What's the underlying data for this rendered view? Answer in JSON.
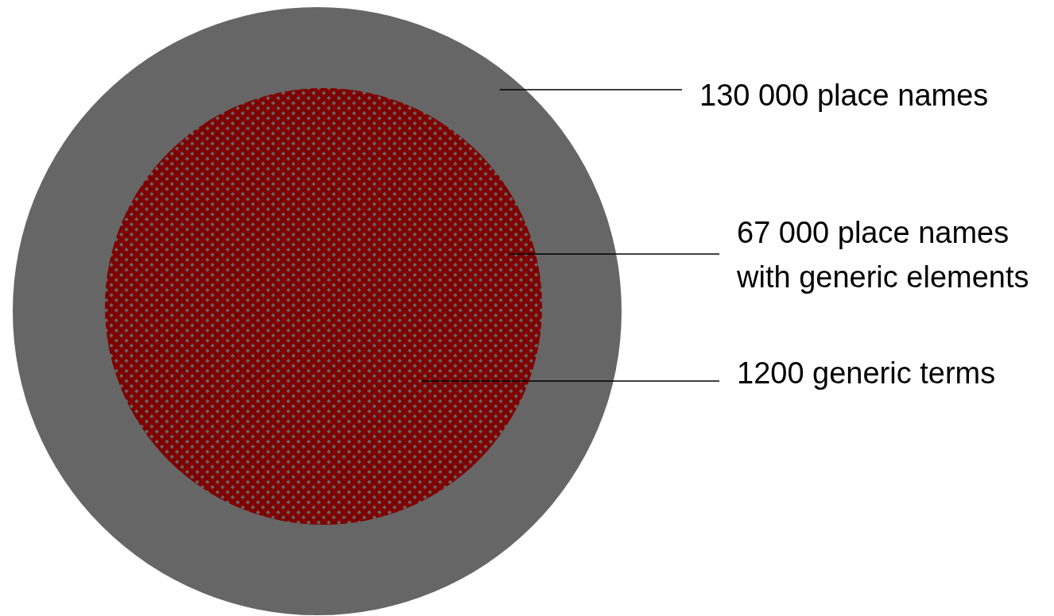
{
  "chart_data": {
    "type": "other",
    "categories": [
      "place names",
      "place names with generic elements",
      "generic terms"
    ],
    "values": [
      130000,
      67000,
      1200
    ],
    "value_labels": [
      "130 000",
      "67 000",
      "1200"
    ],
    "colors": [
      "#666666",
      "#7f0000",
      "#666666"
    ]
  }
}
